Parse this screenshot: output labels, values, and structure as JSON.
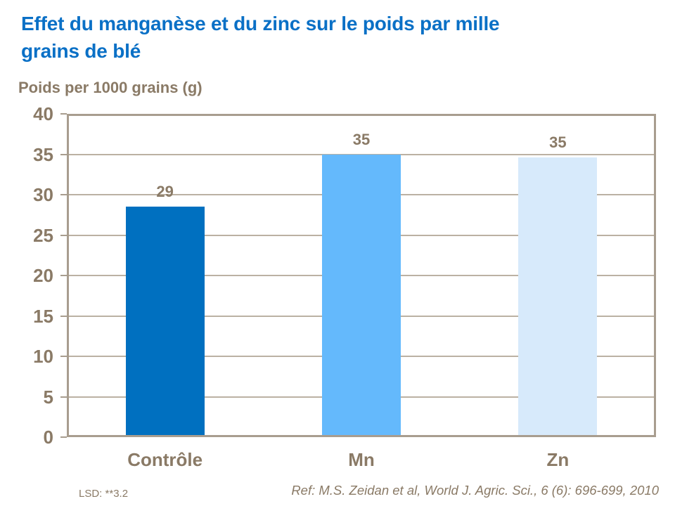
{
  "slide": {
    "title_line1": "Effet du manganèse et du zinc sur le poids par mille",
    "title_line2": "grains de blé",
    "lsd_note": "LSD: **3.2",
    "reference": "Ref: M.S. Zeidan et al, World J. Agric. Sci., 6 (6): 696-699, 2010"
  },
  "chart_data": {
    "type": "bar",
    "title": "Poids per 1000 grains (g)",
    "ylabel": "Poids per 1000 grains (g)",
    "xlabel": "",
    "categories": [
      "Contrôle",
      "Mn",
      "Zn"
    ],
    "values": [
      29,
      35,
      35
    ],
    "bar_heights_visual": [
      28.5,
      35,
      34.6
    ],
    "bar_colors": [
      "#0070c0",
      "#64b9fc",
      "#d7eafb"
    ],
    "ylim": [
      0,
      40
    ],
    "ytick_step": 5,
    "grid": true,
    "legend_position": "none"
  },
  "colors": {
    "title_blue": "#0a70c6",
    "text_brown": "#8a7a66",
    "axis_line": "#a89d8f",
    "gridline": "#bbb1a3",
    "background": "#ffffff"
  }
}
